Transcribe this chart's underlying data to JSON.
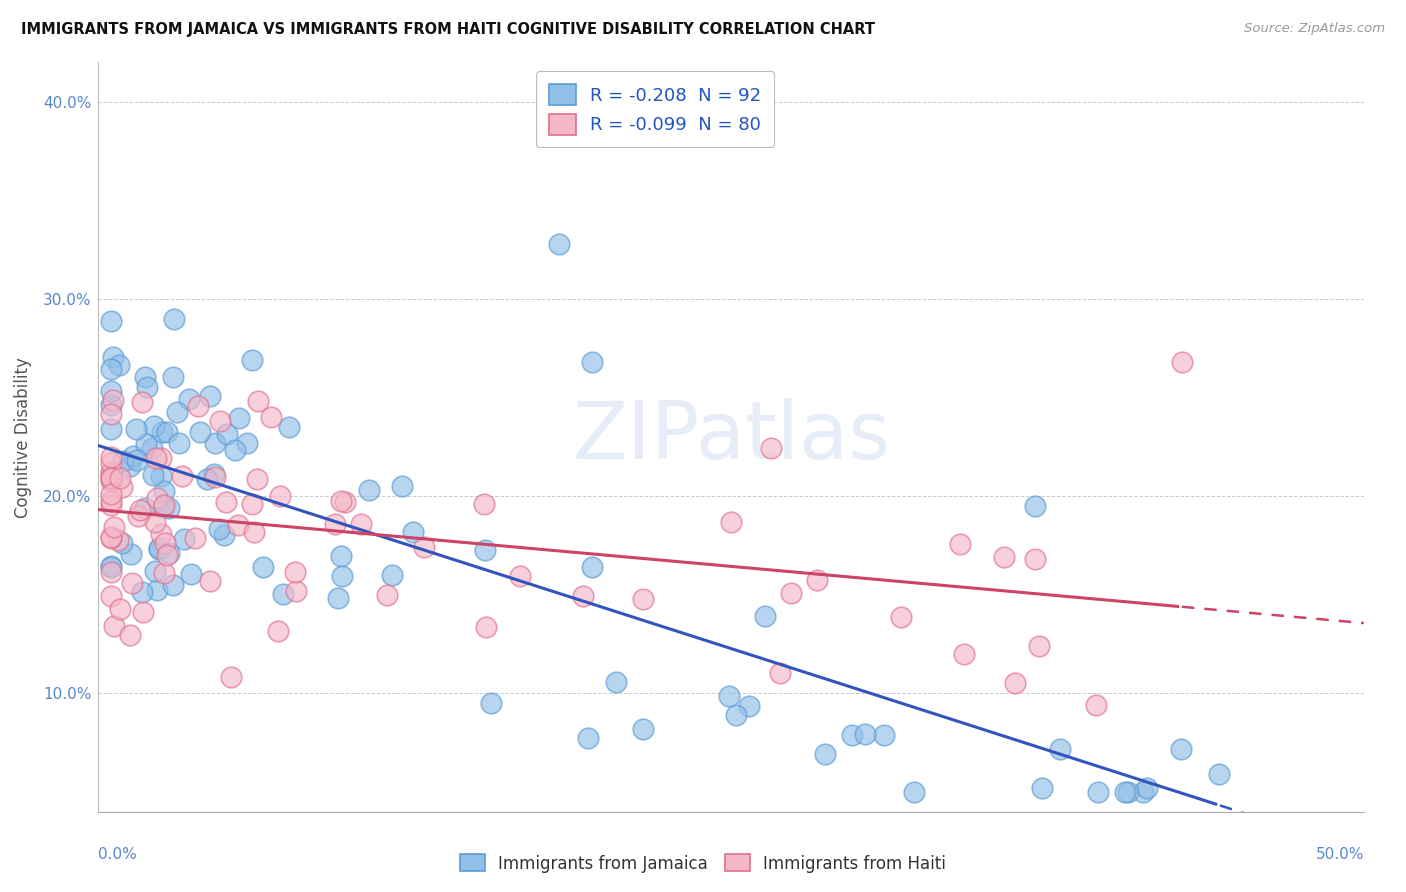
{
  "title": "IMMIGRANTS FROM JAMAICA VS IMMIGRANTS FROM HAITI COGNITIVE DISABILITY CORRELATION CHART",
  "source": "Source: ZipAtlas.com",
  "ylabel": "Cognitive Disability",
  "xlim": [
    0.0,
    0.5
  ],
  "ylim": [
    0.04,
    0.42
  ],
  "yticks": [
    0.1,
    0.2,
    0.3,
    0.4
  ],
  "ytick_labels": [
    "10.0%",
    "20.0%",
    "30.0%",
    "40.0%"
  ],
  "xtick_labels": [
    "0.0%",
    "50.0%"
  ],
  "jamaica_color": "#92bfe8",
  "jamaica_edge": "#5b9bd5",
  "haiti_color": "#f4b8c8",
  "haiti_edge": "#e07090",
  "jamaica_R": -0.208,
  "jamaica_N": 92,
  "haiti_R": -0.099,
  "haiti_N": 80,
  "jamaica_line_color": "#3355bb",
  "haiti_line_color": "#cc4466",
  "watermark": "ZIPatlas",
  "background_color": "#ffffff",
  "grid_color": "#cccccc"
}
